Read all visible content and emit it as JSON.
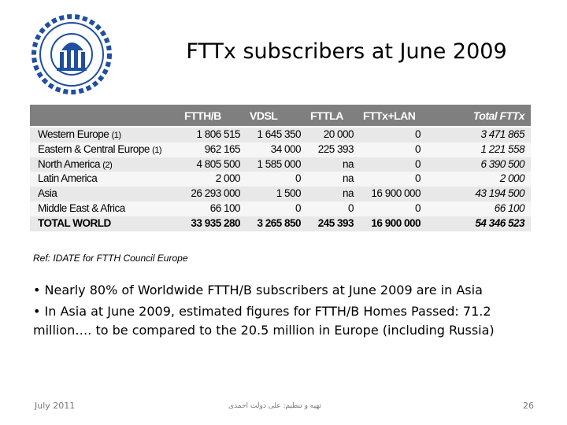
{
  "header": {
    "title": "FTTx subscribers at June 2009"
  },
  "table": {
    "columns": [
      "FTTH/B",
      "VDSL",
      "FTTLA",
      "FTTx+LAN",
      "Total FTTx"
    ],
    "rows": [
      {
        "name": "Western Europe",
        "note": "(1)",
        "cells": [
          "1 806 515",
          "1 645 350",
          "20 000",
          "0",
          "3 471 865"
        ]
      },
      {
        "name": "Eastern & Central Europe",
        "note": "(1)",
        "cells": [
          "962 165",
          "34 000",
          "225 393",
          "0",
          "1 221 558"
        ]
      },
      {
        "name": "North America",
        "note": "(2)",
        "cells": [
          "4 805 500",
          "1 585 000",
          "na",
          "0",
          "6 390 500"
        ]
      },
      {
        "name": "Latin America",
        "cells": [
          "2 000",
          "0",
          "na",
          "0",
          "2 000"
        ]
      },
      {
        "name": "Asia",
        "cells": [
          "26 293 000",
          "1 500",
          "na",
          "16 900 000",
          "43 194 500"
        ]
      },
      {
        "name": "Middle East & Africa",
        "cells": [
          "66 100",
          "0",
          "0",
          "0",
          "66 100"
        ]
      },
      {
        "name": "TOTAL WORLD",
        "cells": [
          "33 935 280",
          "3 265 850",
          "245 393",
          "16 900 000",
          "54 346 523"
        ]
      }
    ]
  },
  "reference": "Ref: IDATE for FTTH Council Europe",
  "bullets": [
    "• Nearly 80% of Worldwide FTTH/B subscribers at June 2009 are in Asia",
    "• In Asia at June 2009, estimated figures for FTTH/B Homes Passed: 71.2 million…. to be compared to the 20.5 million in Europe (including Russia)"
  ],
  "footer": {
    "date": "July 2011",
    "author": "تهیه و تنظیم: علی دولت احمدی",
    "page": "26"
  }
}
